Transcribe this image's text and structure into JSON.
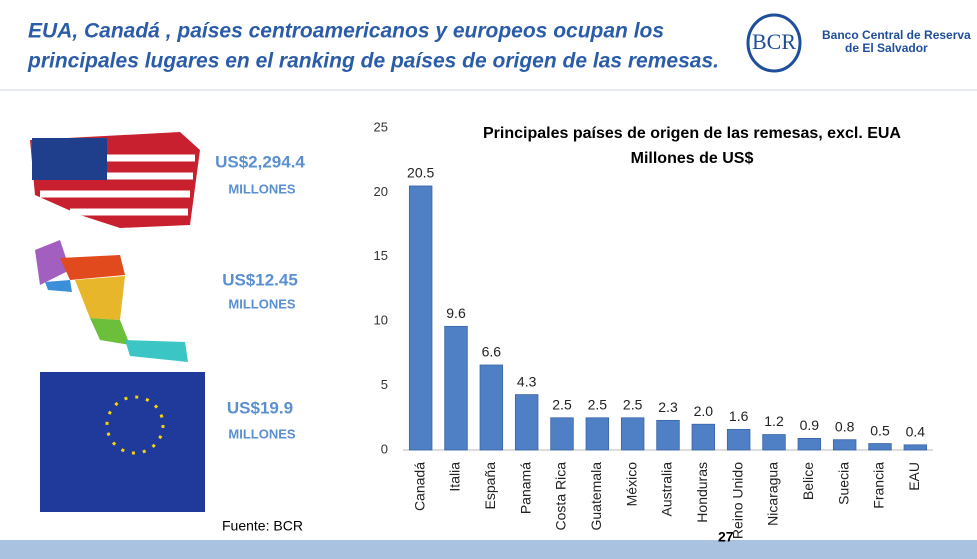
{
  "header": {
    "title_lines": [
      "EUA, Canadá , países centroamericanos y europeos ocupan los",
      "principales lugares en el ranking de países de origen de las remesas."
    ],
    "logo": "BCR",
    "org_lines": [
      "Banco Central de Reserva",
      "de El Salvador"
    ]
  },
  "highlights": [
    {
      "amount": "US$2,294.4",
      "unit": "MILLONES"
    },
    {
      "amount": "US$12.45",
      "unit": "MILLONES"
    },
    {
      "amount": "US$19.9",
      "unit": "MILLONES"
    }
  ],
  "source": "Fuente: BCR",
  "page_number": "27",
  "chart_data": {
    "type": "bar",
    "title": "Principales países de origen de las remesas, excl. EUA",
    "subtitle": "Millones de US$",
    "categories": [
      "Canadá",
      "Italia",
      "España",
      "Panamá",
      "Costa Rica",
      "Guatemala",
      "México",
      "Australia",
      "Honduras",
      "Reino Unido",
      "Nicaragua",
      "Belice",
      "Suecia",
      "Francia",
      "EAU"
    ],
    "values": [
      20.5,
      9.6,
      6.6,
      4.3,
      2.5,
      2.5,
      2.5,
      2.3,
      2.0,
      1.6,
      1.2,
      0.9,
      0.8,
      0.5,
      0.4
    ],
    "value_labels": [
      "20.5",
      "9.6",
      "6.6",
      "4.3",
      "2.5",
      "2.5",
      "2.5",
      "2.3",
      "2.0",
      "1.6",
      "1.2",
      "0.9",
      "0.8",
      "0.5",
      "0.4"
    ],
    "color": "#4f7fc4",
    "ylim": [
      0,
      25
    ],
    "yticks": [
      0,
      5,
      10,
      15,
      20,
      25
    ],
    "grid": false
  }
}
